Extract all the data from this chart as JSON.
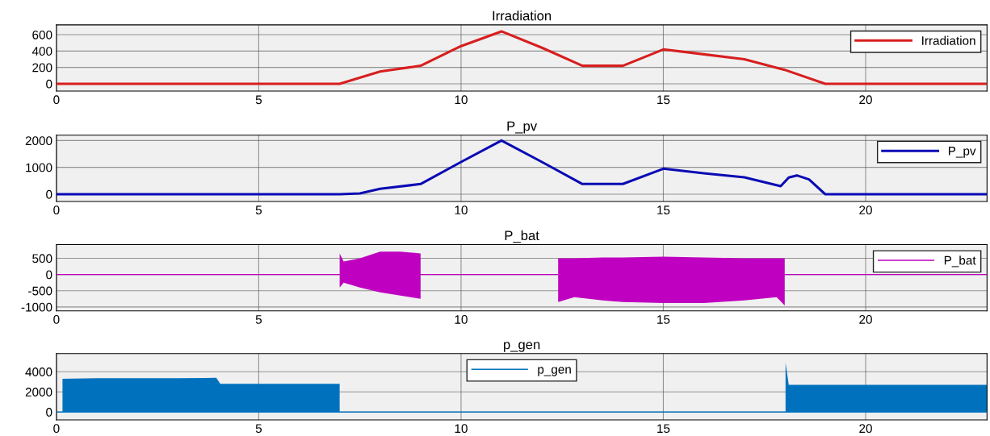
{
  "chart_data": [
    {
      "type": "line",
      "title": "Irradiation",
      "xlim": [
        0,
        23
      ],
      "xticks": [
        0,
        5,
        10,
        15,
        20
      ],
      "ylim": [
        -90,
        720
      ],
      "yticks": [
        0,
        200,
        400,
        600
      ],
      "grid": true,
      "legend": "top right",
      "series": [
        {
          "name": "Irradiation",
          "color": "#d81e1e",
          "x": [
            0,
            7,
            8,
            9,
            10,
            11,
            12,
            13,
            14,
            15,
            16,
            17,
            18,
            19,
            23
          ],
          "values": [
            0,
            0,
            150,
            220,
            460,
            640,
            440,
            220,
            220,
            420,
            360,
            300,
            170,
            0,
            0
          ]
        }
      ]
    },
    {
      "type": "line",
      "title": "P_pv",
      "xlim": [
        0,
        23
      ],
      "xticks": [
        0,
        5,
        10,
        15,
        20
      ],
      "ylim": [
        -270,
        2200
      ],
      "yticks": [
        0,
        1000,
        2000
      ],
      "grid": true,
      "legend": "top right",
      "series": [
        {
          "name": "P_pv",
          "color": "#0a0ab4",
          "x": [
            0,
            7,
            7.5,
            8,
            9,
            10,
            11,
            12,
            13,
            14,
            15,
            16,
            17,
            17.9,
            18.1,
            18.3,
            18.6,
            19,
            23
          ],
          "values": [
            0,
            0,
            30,
            200,
            380,
            1200,
            2000,
            1200,
            380,
            380,
            950,
            780,
            630,
            300,
            620,
            700,
            550,
            0,
            0
          ]
        }
      ]
    },
    {
      "type": "line",
      "title": "P_bat",
      "xlim": [
        0,
        23
      ],
      "xticks": [
        0,
        5,
        10,
        15,
        20
      ],
      "ylim": [
        -1120,
        920
      ],
      "yticks": [
        -1000,
        -500,
        0,
        500
      ],
      "grid": true,
      "legend": "top right",
      "series": [
        {
          "name": "P_bat",
          "color": "#c000c0",
          "x": [
            0,
            7,
            7.1,
            7.5,
            8,
            8.5,
            9,
            10.5,
            12.4,
            12.8,
            13.5,
            14,
            15,
            16,
            17,
            17.8,
            18,
            23
          ],
          "values": [
            0,
            0,
            0,
            0,
            0,
            0,
            0,
            0,
            0,
            0,
            0,
            0,
            0,
            0,
            0,
            0,
            0,
            0
          ],
          "upper": [
            null,
            650,
            400,
            500,
            700,
            700,
            650,
            null,
            500,
            500,
            520,
            520,
            550,
            520,
            500,
            500,
            500,
            null
          ],
          "lower": [
            null,
            -400,
            -250,
            -400,
            -550,
            -650,
            -750,
            null,
            -850,
            -700,
            -800,
            -850,
            -880,
            -880,
            -800,
            -700,
            -950,
            null
          ]
        }
      ]
    },
    {
      "type": "line",
      "title": "p_gen",
      "xlim": [
        0,
        23
      ],
      "xticks": [
        0,
        5,
        10,
        15,
        20
      ],
      "ylim": [
        -780,
        5800
      ],
      "yticks": [
        0,
        2000,
        4000
      ],
      "grid": true,
      "legend": "top",
      "series": [
        {
          "name": "p_gen",
          "color": "#0072bd",
          "x": [
            0,
            0.15,
            1,
            2,
            3,
            3.95,
            4.05,
            5,
            6,
            7,
            12,
            18.02,
            18.1,
            19,
            20,
            21,
            22,
            23
          ],
          "values": [
            0,
            0,
            0,
            0,
            0,
            0,
            0,
            0,
            0,
            0,
            0,
            0,
            0,
            0,
            0,
            0,
            0,
            0
          ],
          "upper": [
            null,
            3300,
            3350,
            3350,
            3350,
            3400,
            2800,
            2800,
            2800,
            2800,
            null,
            4900,
            2700,
            2700,
            2700,
            2700,
            2700,
            2700
          ],
          "lower": [
            null,
            0,
            0,
            0,
            0,
            0,
            0,
            0,
            0,
            0,
            null,
            0,
            0,
            0,
            0,
            0,
            0,
            0
          ]
        }
      ]
    }
  ]
}
